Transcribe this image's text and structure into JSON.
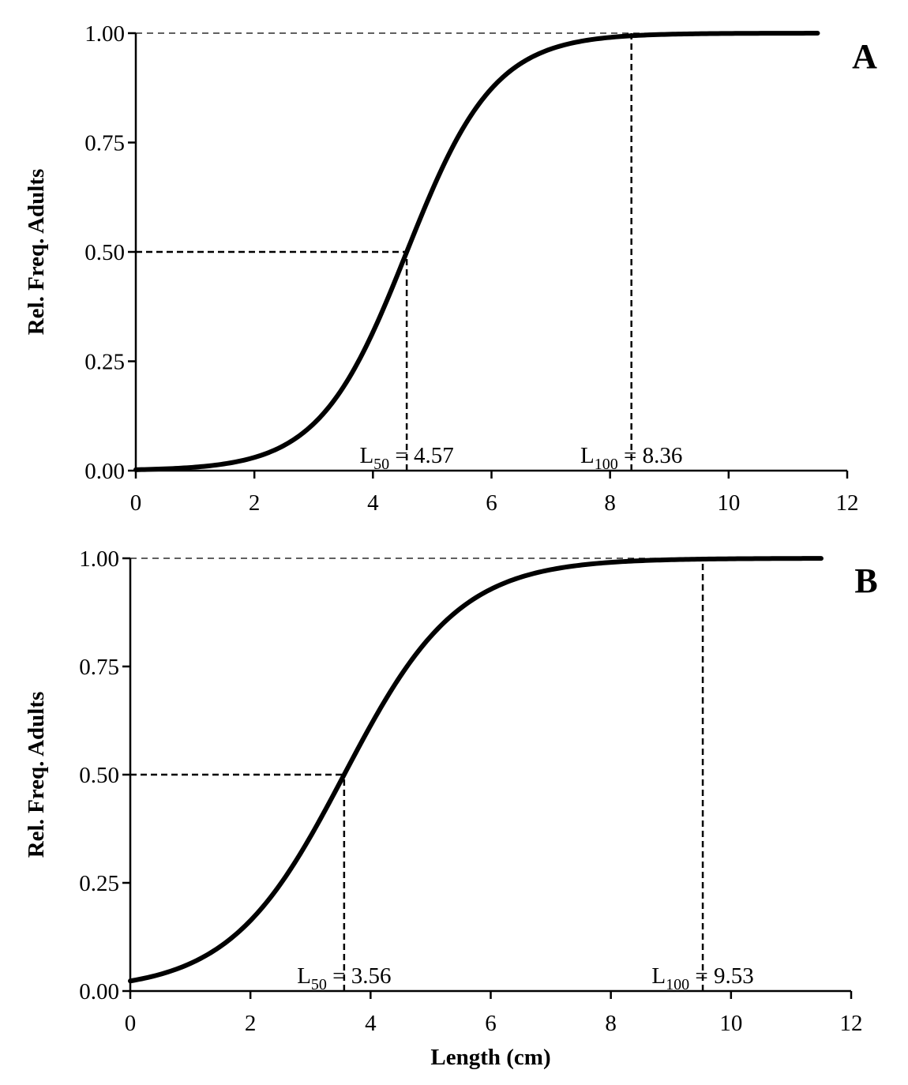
{
  "chart_data": [
    {
      "type": "line",
      "panel_label": "A",
      "title": "",
      "xlabel": "",
      "ylabel": "Rel. Freq. Adults",
      "xlim": [
        0,
        12
      ],
      "ylim": [
        0,
        1
      ],
      "x_ticks": [
        "0",
        "2",
        "4",
        "6",
        "8",
        "10",
        "12"
      ],
      "y_ticks": [
        "0.00",
        "0.25",
        "0.50",
        "0.75",
        "1.00"
      ],
      "grid": false,
      "legend": "none",
      "curve": {
        "model": "logistic",
        "midpoint": 4.57,
        "slope": 1.35,
        "x_range": [
          0,
          11.5
        ]
      },
      "reference_lines": [
        {
          "kind": "horizontal",
          "y": 1.0,
          "from_x": 0,
          "to_x": 11.5,
          "style": "thin-dashed"
        },
        {
          "kind": "horizontal",
          "y": 0.5,
          "from_x": 0,
          "to_x": 4.57,
          "style": "dashed"
        },
        {
          "kind": "vertical",
          "x": 4.57,
          "from_y": 0,
          "to_y": 0.5,
          "style": "dashed"
        },
        {
          "kind": "vertical",
          "x": 8.36,
          "from_y": 0,
          "to_y": 1.0,
          "style": "dashed"
        }
      ],
      "annotations": [
        {
          "main": "L",
          "sub": "50",
          "rest": " = 4.57",
          "x": 4.57
        },
        {
          "main": "L",
          "sub": "100",
          "rest": " = 8.36",
          "x": 8.36
        }
      ]
    },
    {
      "type": "line",
      "panel_label": "B",
      "title": "",
      "xlabel": "Length (cm)",
      "ylabel": "Rel. Freq. Adults",
      "xlim": [
        0,
        12
      ],
      "ylim": [
        0,
        1
      ],
      "x_ticks": [
        "0",
        "2",
        "4",
        "6",
        "8",
        "10",
        "12"
      ],
      "y_ticks": [
        "0.00",
        "0.25",
        "0.50",
        "0.75",
        "1.00"
      ],
      "grid": false,
      "legend": "none",
      "curve": {
        "model": "logistic",
        "midpoint": 3.56,
        "slope": 1.05,
        "x_range": [
          0,
          11.5
        ]
      },
      "reference_lines": [
        {
          "kind": "horizontal",
          "y": 1.0,
          "from_x": 0,
          "to_x": 11.5,
          "style": "thin-dashed"
        },
        {
          "kind": "horizontal",
          "y": 0.5,
          "from_x": 0,
          "to_x": 3.56,
          "style": "dashed"
        },
        {
          "kind": "vertical",
          "x": 3.56,
          "from_y": 0,
          "to_y": 0.5,
          "style": "dashed"
        },
        {
          "kind": "vertical",
          "x": 9.53,
          "from_y": 0,
          "to_y": 1.0,
          "style": "dashed"
        }
      ],
      "annotations": [
        {
          "main": "L",
          "sub": "50",
          "rest": " = 3.56",
          "x": 3.56
        },
        {
          "main": "L",
          "sub": "100",
          "rest": " = 9.53",
          "x": 9.53
        }
      ]
    }
  ]
}
